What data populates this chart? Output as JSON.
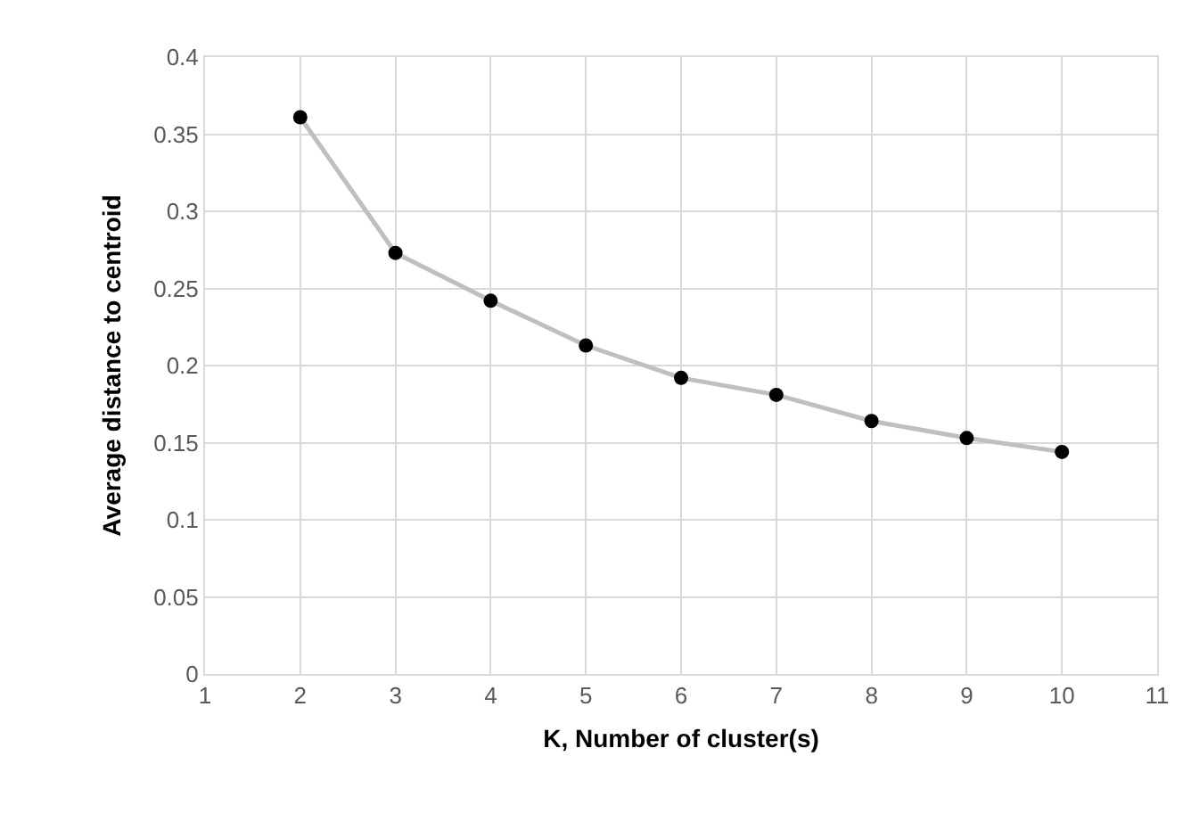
{
  "chart_data": {
    "type": "line",
    "xlabel": "K, Number of cluster(s)",
    "ylabel": "Average distance to centroid",
    "x": [
      2,
      3,
      4,
      5,
      6,
      7,
      8,
      9,
      10
    ],
    "series": [
      {
        "color": "#bfbfbf",
        "values": [
          0.361,
          0.273,
          0.242,
          0.213,
          0.192,
          0.181,
          0.164,
          0.153,
          0.144
        ]
      }
    ],
    "marker": "circle",
    "line_style": "solid",
    "grid": true,
    "xlim": [
      1,
      11
    ],
    "xticks": [
      1,
      2,
      3,
      4,
      5,
      6,
      7,
      8,
      9,
      10,
      11
    ],
    "ylim": [
      0,
      0.4
    ],
    "yticks": [
      {
        "value": 0,
        "label": "0"
      },
      0.05,
      {
        "value": 0.1,
        "label": "0.1"
      },
      0.15,
      {
        "value": 0.2,
        "label": "0.2"
      },
      0.25,
      {
        "value": 0.3,
        "label": "0.3"
      },
      0.35,
      {
        "value": 0.4,
        "label": "0.4"
      }
    ]
  }
}
